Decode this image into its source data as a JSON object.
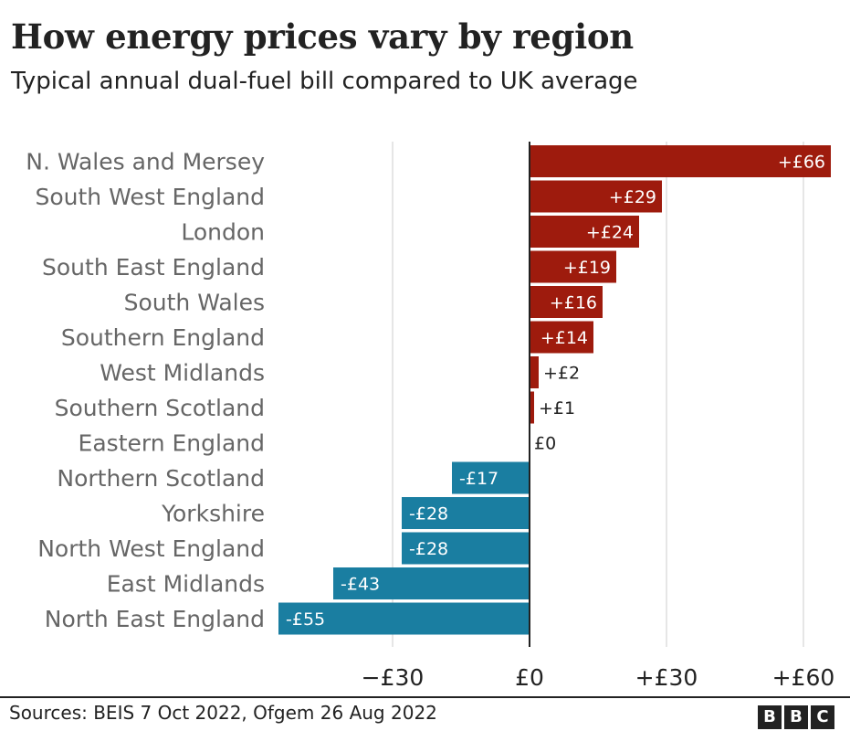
{
  "title": "How energy prices vary by region",
  "subtitle": "Typical annual dual-fuel bill compared to UK average",
  "source": "Sources: BEIS 7 Oct 2022, Ofgem 26 Aug 2022",
  "logo": [
    "B",
    "B",
    "C"
  ],
  "colors": {
    "positive": "#9e1b0d",
    "negative": "#1a7ea1",
    "grid": "#cccccc",
    "axis": "#222222",
    "category_text": "#666666"
  },
  "chart_data": {
    "type": "bar",
    "orientation": "horizontal",
    "categories": [
      "N. Wales and Mersey",
      "South West England",
      "London",
      "South East England",
      "South Wales",
      "Southern England",
      "West Midlands",
      "Southern Scotland",
      "Eastern England",
      "Northern Scotland",
      "Yorkshire",
      "North West England",
      "East Midlands",
      "North East England"
    ],
    "values": [
      66,
      29,
      24,
      19,
      16,
      14,
      2,
      1,
      0,
      -17,
      -28,
      -28,
      -43,
      -55
    ],
    "data_labels": [
      "+£66",
      "+£29",
      "+£24",
      "+£19",
      "+£16",
      "+£14",
      "+£2",
      "+£1",
      "£0",
      "-£17",
      "-£28",
      "-£28",
      "-£43",
      "-£55"
    ],
    "xlim": [
      -55,
      66
    ],
    "x_ticks": [
      -30,
      0,
      30,
      60
    ],
    "x_tick_labels": [
      "−£30",
      "£0",
      "+£30",
      "+£60"
    ],
    "grid": true
  }
}
